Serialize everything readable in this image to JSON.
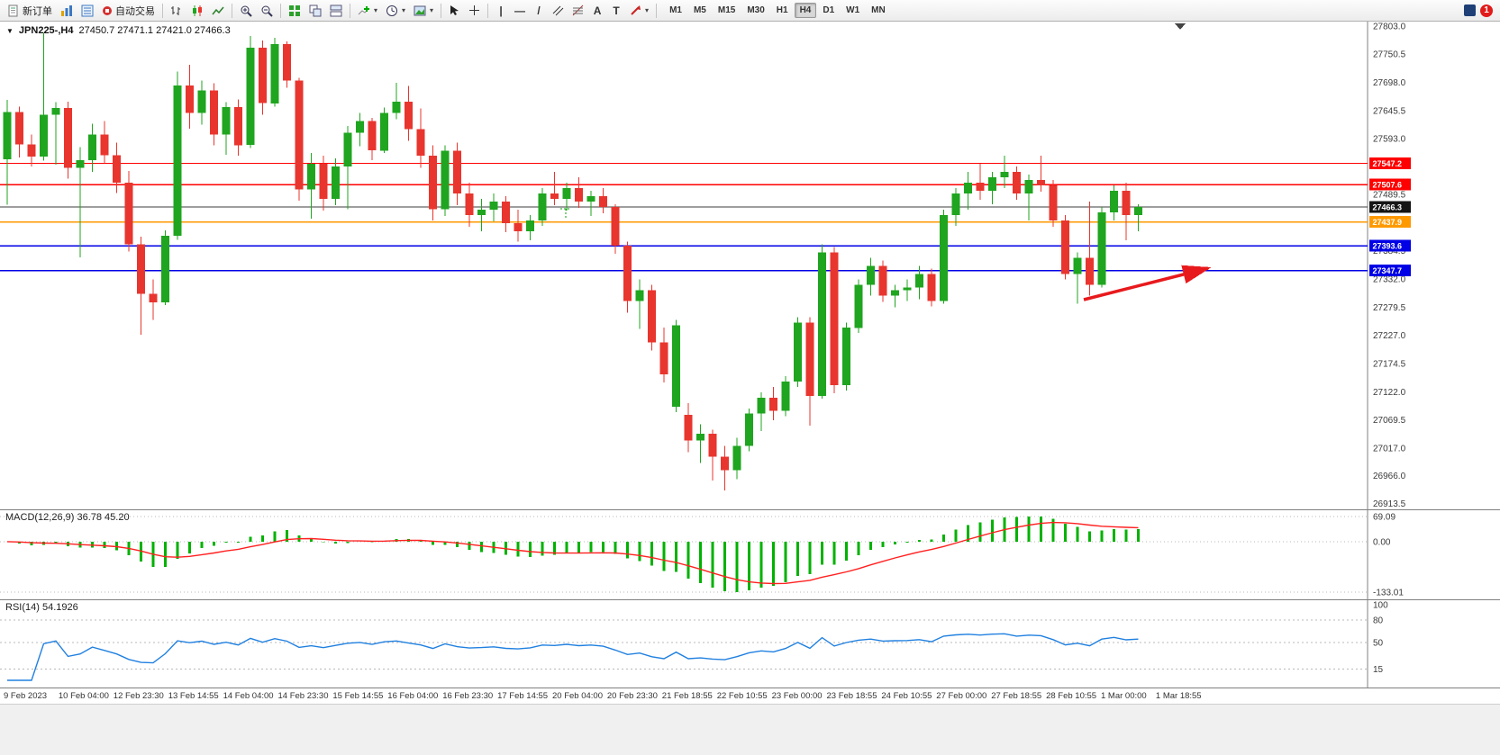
{
  "window": {
    "symbol_period": "JPN225-,H4",
    "ohlc_text": "27450.7 27471.1 27421.0 27466.3"
  },
  "toolbar": {
    "new_order": "新订单",
    "auto_trading": "自动交易",
    "timeframes": [
      "M1",
      "M5",
      "M15",
      "M30",
      "H1",
      "H4",
      "D1",
      "W1",
      "MN"
    ],
    "active_timeframe": "H4",
    "notification_count": "1"
  },
  "chart_data": {
    "type": "candlestick",
    "title": "JPN225-,H4",
    "symbol": "JPN225-",
    "timeframe": "H4",
    "quote": {
      "open": 27450.7,
      "high": 27471.1,
      "low": 27421.0,
      "close": 27466.3
    },
    "colors": {
      "up": "#1fa51f",
      "down": "#e8352e",
      "macd_hist": "#00b200",
      "macd_signal": "#ff2020",
      "rsi_line": "#2080e0",
      "arrow": "#e8191c"
    },
    "y_axis": {
      "min": 26903,
      "max": 27811,
      "labels": [
        "27803.0",
        "27750.5",
        "27698.0",
        "27645.5",
        "27593.0",
        "27489.5",
        "27384.5",
        "27332.0",
        "27279.5",
        "27227.0",
        "27174.5",
        "27122.0",
        "27069.5",
        "27017.0",
        "26966.0",
        "26913.5"
      ]
    },
    "x_labels": [
      "9 Feb 2023",
      "10 Feb 04:00",
      "12 Feb 23:30",
      "13 Feb 14:55",
      "14 Feb 04:00",
      "14 Feb 23:30",
      "15 Feb 14:55",
      "16 Feb 04:00",
      "16 Feb 23:30",
      "17 Feb 14:55",
      "20 Feb 04:00",
      "20 Feb 23:30",
      "21 Feb 18:55",
      "22 Feb 10:55",
      "23 Feb 00:00",
      "23 Feb 18:55",
      "24 Feb 10:55",
      "27 Feb 00:00",
      "27 Feb 18:55",
      "28 Feb 10:55",
      "1 Mar 00:00",
      "1 Mar 18:55"
    ],
    "hlines": [
      {
        "price": 27547.2,
        "label": "27547.2",
        "color": "#ff0000",
        "width": 1.3
      },
      {
        "price": 27507.6,
        "label": "27507.6",
        "color": "#ff0000",
        "width": 1.3
      },
      {
        "price": 27466.3,
        "label": "27466.3",
        "color": "#3c3c3c",
        "width": 1,
        "badge": "#151515"
      },
      {
        "price": 27437.9,
        "label": "27437.9",
        "color": "#ff9900",
        "width": 1.6
      },
      {
        "price": 27393.6,
        "label": "27393.6",
        "color": "#0000e6",
        "width": 1.6
      },
      {
        "price": 27347.7,
        "label": "27347.7",
        "color": "#0000e6",
        "width": 1.6
      }
    ],
    "candles": [
      [
        27555,
        27665,
        27470,
        27643
      ],
      [
        27643,
        27653,
        27558,
        27582
      ],
      [
        27582,
        27601,
        27541,
        27560
      ],
      [
        27560,
        27790,
        27552,
        27638
      ],
      [
        27638,
        27661,
        27545,
        27650
      ],
      [
        27650,
        27662,
        27519,
        27539
      ],
      [
        27539,
        27577,
        27372,
        27553
      ],
      [
        27553,
        27621,
        27531,
        27601
      ],
      [
        27601,
        27626,
        27547,
        27562
      ],
      [
        27562,
        27586,
        27492,
        27511
      ],
      [
        27511,
        27533,
        27383,
        27396
      ],
      [
        27396,
        27411,
        27228,
        27304
      ],
      [
        27304,
        27331,
        27256,
        27288
      ],
      [
        27288,
        27422,
        27283,
        27412
      ],
      [
        27412,
        27718,
        27405,
        27692
      ],
      [
        27692,
        27731,
        27612,
        27641
      ],
      [
        27641,
        27701,
        27619,
        27683
      ],
      [
        27683,
        27696,
        27581,
        27601
      ],
      [
        27601,
        27661,
        27563,
        27652
      ],
      [
        27652,
        27666,
        27561,
        27581
      ],
      [
        27581,
        27784,
        27576,
        27762
      ],
      [
        27762,
        27776,
        27638,
        27659
      ],
      [
        27659,
        27781,
        27653,
        27769
      ],
      [
        27769,
        27774,
        27688,
        27701
      ],
      [
        27701,
        27706,
        27478,
        27499
      ],
      [
        27499,
        27566,
        27444,
        27546
      ],
      [
        27546,
        27561,
        27459,
        27481
      ],
      [
        27481,
        27556,
        27469,
        27541
      ],
      [
        27541,
        27617,
        27462,
        27604
      ],
      [
        27604,
        27641,
        27579,
        27626
      ],
      [
        27626,
        27632,
        27553,
        27571
      ],
      [
        27571,
        27651,
        27566,
        27641
      ],
      [
        27641,
        27697,
        27629,
        27662
      ],
      [
        27662,
        27691,
        27589,
        27611
      ],
      [
        27611,
        27649,
        27539,
        27561
      ],
      [
        27561,
        27581,
        27441,
        27462
      ],
      [
        27462,
        27581,
        27449,
        27571
      ],
      [
        27571,
        27586,
        27469,
        27491
      ],
      [
        27491,
        27511,
        27429,
        27451
      ],
      [
        27451,
        27481,
        27421,
        27461
      ],
      [
        27461,
        27491,
        27439,
        27476
      ],
      [
        27476,
        27486,
        27419,
        27436
      ],
      [
        27436,
        27461,
        27401,
        27421
      ],
      [
        27421,
        27451,
        27404,
        27441
      ],
      [
        27441,
        27501,
        27431,
        27491
      ],
      [
        27491,
        27531,
        27469,
        27481
      ],
      [
        27481,
        27511,
        27459,
        27501
      ],
      [
        27501,
        27521,
        27464,
        27476
      ],
      [
        27476,
        27496,
        27449,
        27486
      ],
      [
        27486,
        27501,
        27454,
        27466
      ],
      [
        27466,
        27471,
        27379,
        27394
      ],
      [
        27394,
        27401,
        27269,
        27291
      ],
      [
        27291,
        27331,
        27239,
        27311
      ],
      [
        27311,
        27321,
        27199,
        27214
      ],
      [
        27214,
        27241,
        27139,
        27154
      ],
      [
        27094,
        27256,
        27084,
        27246
      ],
      [
        27079,
        27101,
        27009,
        27031
      ],
      [
        27031,
        27061,
        26989,
        27044
      ],
      [
        27044,
        27051,
        26957,
        27001
      ],
      [
        27001,
        27021,
        26938,
        26976
      ],
      [
        26976,
        27036,
        26959,
        27021
      ],
      [
        27021,
        27091,
        27011,
        27081
      ],
      [
        27081,
        27121,
        27049,
        27111
      ],
      [
        27111,
        27131,
        27069,
        27086
      ],
      [
        27086,
        27151,
        27076,
        27141
      ],
      [
        27141,
        27261,
        27131,
        27251
      ],
      [
        27251,
        27261,
        27059,
        27114
      ],
      [
        27114,
        27396,
        27109,
        27381
      ],
      [
        27381,
        27391,
        27119,
        27134
      ],
      [
        27134,
        27251,
        27124,
        27241
      ],
      [
        27241,
        27331,
        27231,
        27321
      ],
      [
        27321,
        27371,
        27301,
        27356
      ],
      [
        27356,
        27366,
        27289,
        27301
      ],
      [
        27301,
        27321,
        27279,
        27311
      ],
      [
        27311,
        27331,
        27291,
        27316
      ],
      [
        27316,
        27356,
        27294,
        27341
      ],
      [
        27341,
        27351,
        27281,
        27291
      ],
      [
        27291,
        27461,
        27286,
        27451
      ],
      [
        27451,
        27501,
        27431,
        27491
      ],
      [
        27491,
        27531,
        27461,
        27511
      ],
      [
        27511,
        27546,
        27479,
        27496
      ],
      [
        27496,
        27531,
        27471,
        27521
      ],
      [
        27521,
        27561,
        27501,
        27531
      ],
      [
        27531,
        27541,
        27479,
        27491
      ],
      [
        27491,
        27526,
        27441,
        27516
      ],
      [
        27516,
        27561,
        27494,
        27506
      ],
      [
        27506,
        27516,
        27429,
        27441
      ],
      [
        27441,
        27451,
        27331,
        27341
      ],
      [
        27341,
        27381,
        27286,
        27371
      ],
      [
        27371,
        27476,
        27301,
        27321
      ],
      [
        27321,
        27466,
        27316,
        27456
      ],
      [
        27456,
        27506,
        27441,
        27496
      ],
      [
        27496,
        27511,
        27404,
        27451
      ],
      [
        27450.7,
        27471.1,
        27421.0,
        27466.3
      ]
    ],
    "indicators": {
      "macd": {
        "label": "MACD(12,26,9) 36.78 45.20",
        "params": [
          12,
          26,
          9
        ],
        "value_main": "36.78",
        "value_signal": "45.20",
        "scale": [
          "69.09",
          "0.00",
          "-133.01"
        ]
      },
      "rsi": {
        "label": "RSI(14) 54.1926",
        "period": 14,
        "value": "54.1926",
        "levels": [
          "100",
          "80",
          "50",
          "15"
        ]
      }
    }
  }
}
